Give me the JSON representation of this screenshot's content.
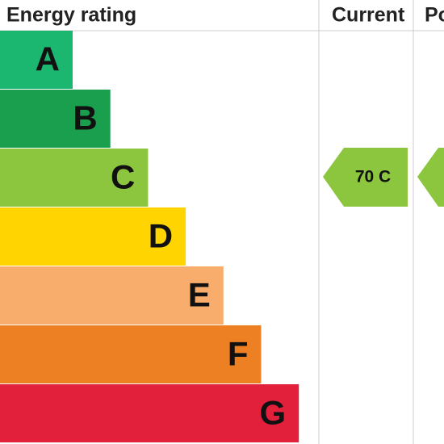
{
  "header": {
    "title": "Energy rating",
    "current": "Current",
    "potential": "Potential"
  },
  "bands": [
    {
      "letter": "A",
      "color": "#1bb66f"
    },
    {
      "letter": "B",
      "color": "#1a9f4f"
    },
    {
      "letter": "C",
      "color": "#8cc63f"
    },
    {
      "letter": "D",
      "color": "#ffd400"
    },
    {
      "letter": "E",
      "color": "#f8ad6c"
    },
    {
      "letter": "F",
      "color": "#ee8024"
    },
    {
      "letter": "G",
      "color": "#e2203c"
    }
  ],
  "current": {
    "label": "70 C",
    "color": "#8cc63f"
  },
  "potential": {
    "color": "#8cc63f"
  }
}
